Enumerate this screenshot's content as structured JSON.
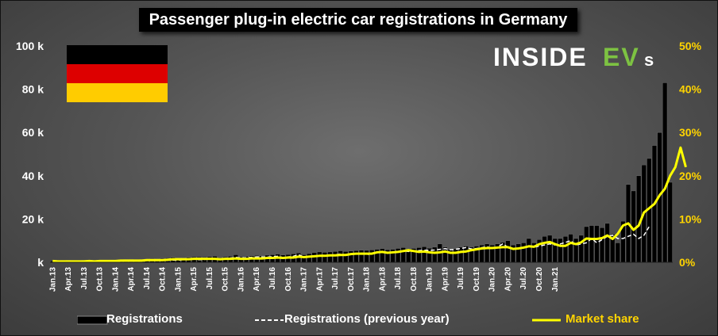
{
  "title": "Passenger plug-in electric car registrations in Germany",
  "brand": {
    "text_main": "INSIDE",
    "text_ev": "EV",
    "text_s": "s"
  },
  "flag": {
    "colors": [
      "#000000",
      "#dd0000",
      "#ffcc00"
    ]
  },
  "legend": {
    "registrations": "Registrations",
    "previous_year": "Registrations (previous year)",
    "market_share": "Market share"
  },
  "colors": {
    "share_line": "#ffff00",
    "prev_line": "#ffffff",
    "bars": "#000000",
    "right_axis": "#ffd400"
  },
  "chart_data": {
    "type": "bar",
    "title": "Passenger plug-in electric car registrations in Germany",
    "x_tick_labels": [
      "Jan.13",
      "Apr.13",
      "Jul.13",
      "Oct.13",
      "Jan.14",
      "Apr.14",
      "Jul.14",
      "Oct.14",
      "Jan.15",
      "Apr.15",
      "Jul.15",
      "Oct.15",
      "Jan.16",
      "Apr.16",
      "Jul.16",
      "Oct.16",
      "Jan.17",
      "Apr.17",
      "Jul.17",
      "Oct.17",
      "Jan.18",
      "Apr.18",
      "Jul.18",
      "Oct.18",
      "Jan.19",
      "Apr.19",
      "Jul.19",
      "Oct.19",
      "Jan.20",
      "Apr.20",
      "Jul.20",
      "Oct.20",
      "Jan.21"
    ],
    "y_left": {
      "min": 0,
      "max": 100000,
      "ticks": [
        0,
        20000,
        40000,
        60000,
        80000,
        100000
      ],
      "tick_labels": [
        "k",
        "20 k",
        "40 k",
        "60 k",
        "80 k",
        "100 k"
      ]
    },
    "y_right": {
      "min": 0,
      "max": 50,
      "ticks": [
        0,
        10,
        20,
        30,
        40,
        50
      ],
      "tick_labels": [
        "0%",
        "10%",
        "20%",
        "30%",
        "40%",
        "50%"
      ]
    },
    "series": [
      {
        "name": "Registrations",
        "type": "bar",
        "axis": "left",
        "values": [
          600,
          700,
          800,
          900,
          700,
          800,
          900,
          1000,
          800,
          900,
          900,
          1000,
          1000,
          1200,
          1300,
          1400,
          1200,
          1300,
          1500,
          1700,
          1600,
          1800,
          2000,
          2300,
          2000,
          2100,
          2300,
          2500,
          2500,
          2400,
          2600,
          2800,
          2200,
          2500,
          2800,
          3500,
          2500,
          2700,
          3000,
          3200,
          3000,
          3300,
          3500,
          3800,
          3400,
          3600,
          3900,
          4300,
          3500,
          4000,
          4500,
          4800,
          4600,
          4800,
          5000,
          5300,
          5000,
          5200,
          5400,
          5600,
          5500,
          5700,
          6000,
          6300,
          5800,
          6000,
          6400,
          6800,
          6200,
          6400,
          6800,
          7200,
          6500,
          7000,
          8500,
          7000,
          6000,
          6200,
          7000,
          7500,
          7000,
          7500,
          8000,
          8500,
          8000,
          8500,
          9200,
          10000,
          8000,
          8500,
          9000,
          11000,
          9000,
          10500,
          12000,
          12500,
          11000,
          11000,
          12000,
          13000,
          11000,
          12500,
          16500,
          17000,
          17000,
          16000,
          18000,
          13000,
          9000,
          19000,
          36000,
          33000,
          40000,
          45000,
          48000,
          54000,
          60000,
          83000,
          37000
        ]
      },
      {
        "name": "Registrations (previous year)",
        "type": "line",
        "axis": "left",
        "dash": true,
        "values": [
          null,
          null,
          null,
          null,
          null,
          null,
          null,
          null,
          null,
          null,
          null,
          null,
          600,
          700,
          800,
          900,
          700,
          800,
          900,
          1000,
          800,
          900,
          900,
          1000,
          1000,
          1200,
          1300,
          1400,
          1200,
          1300,
          1500,
          1700,
          1600,
          1800,
          2000,
          2300,
          2000,
          2100,
          2300,
          2500,
          2500,
          2400,
          2600,
          2800,
          2200,
          2500,
          2800,
          3500,
          2500,
          2700,
          3000,
          3200,
          3000,
          3300,
          3500,
          3800,
          3400,
          3600,
          3900,
          4300,
          3500,
          4000,
          4500,
          4800,
          4600,
          4800,
          5000,
          5300,
          5000,
          5200,
          5400,
          5600,
          5500,
          5700,
          6000,
          6300,
          5800,
          6000,
          6400,
          6800,
          6200,
          6400,
          6800,
          7200,
          6500,
          7000,
          8500,
          7000,
          6000,
          6200,
          7000,
          7500,
          7000,
          7500,
          8000,
          8500,
          8000,
          8500,
          9200,
          10000,
          8000,
          8500,
          9000,
          11000,
          9000,
          10500,
          12000,
          12500,
          11000,
          11000,
          12000,
          13000,
          11000,
          12500,
          16500
        ]
      },
      {
        "name": "Market share",
        "type": "line",
        "axis": "right",
        "values": [
          0.3,
          0.2,
          0.2,
          0.2,
          0.2,
          0.2,
          0.2,
          0.3,
          0.2,
          0.3,
          0.3,
          0.3,
          0.3,
          0.4,
          0.4,
          0.4,
          0.4,
          0.4,
          0.5,
          0.5,
          0.5,
          0.5,
          0.6,
          0.7,
          0.7,
          0.7,
          0.7,
          0.8,
          0.8,
          0.8,
          0.8,
          0.8,
          0.7,
          0.8,
          0.8,
          0.9,
          0.8,
          0.8,
          0.9,
          0.9,
          0.9,
          1.0,
          1.0,
          1.1,
          1.0,
          1.1,
          1.1,
          1.3,
          1.2,
          1.3,
          1.4,
          1.5,
          1.5,
          1.6,
          1.6,
          1.7,
          1.7,
          1.9,
          2.0,
          2.0,
          2.0,
          2.0,
          2.3,
          2.4,
          2.2,
          2.3,
          2.4,
          2.6,
          2.8,
          2.6,
          2.4,
          2.5,
          2.3,
          2.2,
          2.3,
          2.5,
          2.2,
          2.2,
          2.4,
          2.5,
          2.8,
          3.0,
          3.2,
          3.3,
          3.3,
          3.4,
          3.5,
          3.5,
          3.1,
          3.2,
          3.4,
          3.7,
          3.6,
          4.2,
          4.5,
          4.7,
          4.2,
          3.8,
          3.8,
          4.5,
          4.2,
          4.6,
          5.5,
          5.4,
          5.4,
          5.6,
          6.2,
          5.4,
          6.6,
          8.5,
          9.0,
          7.5,
          8.5,
          11.5,
          12.5,
          13.5,
          15.5,
          17.0,
          20.0,
          22.0,
          26.5,
          22.0
        ]
      }
    ]
  }
}
